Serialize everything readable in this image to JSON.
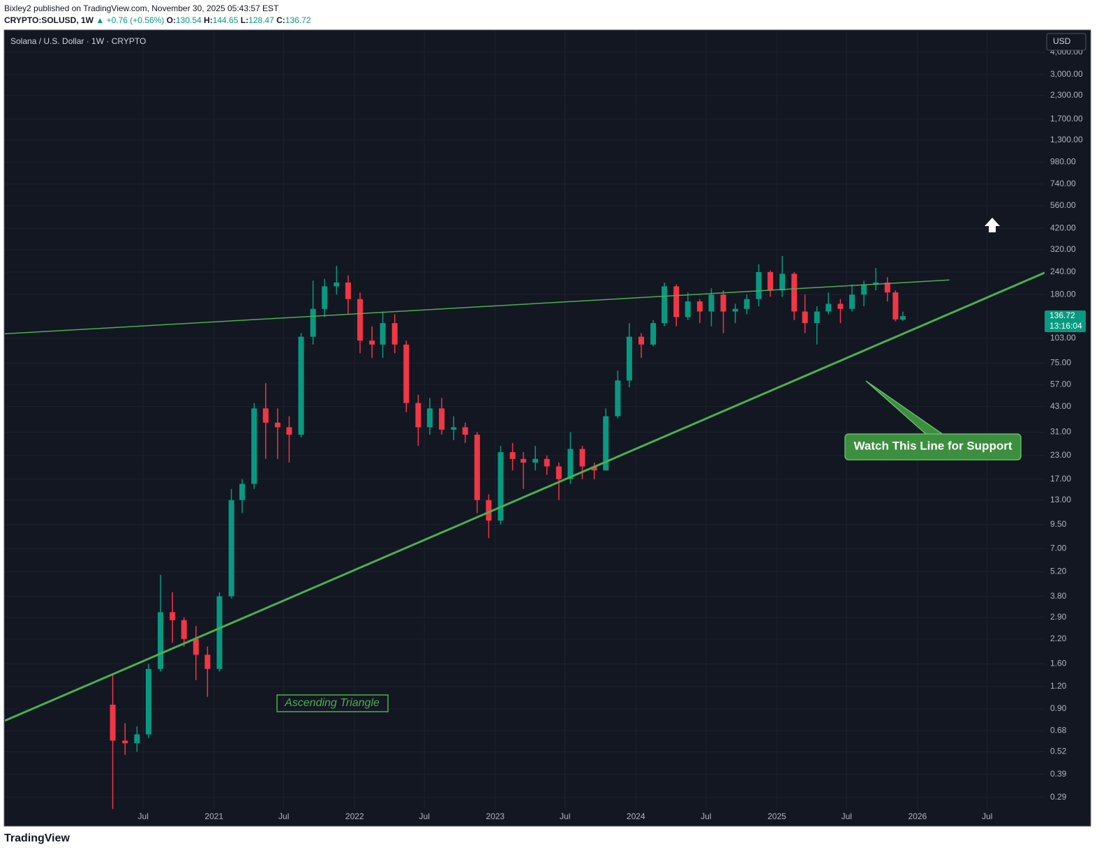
{
  "header": {
    "published": "Bixley2 published on TradingView.com, November 30, 2025 05:43:57 EST",
    "symbol": "CRYPTO:SOLUSD, 1W",
    "change": "▲ +0.76 (+0.56%)",
    "ohlc": [
      {
        "label": "O:",
        "value": 130.54
      },
      {
        "label": "H:",
        "value": 144.65
      },
      {
        "label": "L:",
        "value": 128.47
      },
      {
        "label": "C:",
        "value": 136.72
      }
    ]
  },
  "chart_data": {
    "type": "candlestick",
    "title": "Solana / U.S. Dollar · 1W · CRYPTO",
    "currency": "USD",
    "log_scale": true,
    "grid": true,
    "up_color": "#089981",
    "down_color": "#f23645",
    "x": [
      "2020-04-13",
      "2020-05-15",
      "2020-06-15",
      "2020-07-15",
      "2020-08-15",
      "2020-09-15",
      "2020-10-15",
      "2020-11-15",
      "2020-12-15",
      "2021-01-15",
      "2021-02-15",
      "2021-03-15",
      "2021-04-15",
      "2021-05-15",
      "2021-06-15",
      "2021-07-15",
      "2021-08-15",
      "2021-09-15",
      "2021-10-15",
      "2021-11-15",
      "2021-12-15",
      "2022-01-15",
      "2022-02-15",
      "2022-03-15",
      "2022-04-15",
      "2022-05-15",
      "2022-06-15",
      "2022-07-15",
      "2022-08-15",
      "2022-09-15",
      "2022-10-15",
      "2022-11-15",
      "2022-12-15",
      "2023-01-15",
      "2023-02-15",
      "2023-03-15",
      "2023-04-15",
      "2023-05-15",
      "2023-06-15",
      "2023-07-15",
      "2023-08-15",
      "2023-09-15",
      "2023-10-15",
      "2023-11-15",
      "2023-12-15",
      "2024-01-15",
      "2024-02-15",
      "2024-03-15",
      "2024-04-15",
      "2024-05-15",
      "2024-06-15",
      "2024-07-15",
      "2024-08-15",
      "2024-09-15",
      "2024-10-15",
      "2024-11-15",
      "2024-12-15",
      "2025-01-15",
      "2025-02-15",
      "2025-03-15",
      "2025-04-15",
      "2025-05-15",
      "2025-06-15",
      "2025-07-15",
      "2025-08-15",
      "2025-09-15",
      "2025-10-15",
      "2025-11-05",
      "2025-11-24"
    ],
    "open": [
      0.95,
      0.6,
      0.58,
      0.65,
      1.5,
      3.1,
      2.8,
      2.2,
      1.8,
      1.5,
      3.8,
      13,
      16,
      42,
      35,
      33,
      30,
      105,
      150,
      200,
      210,
      170,
      100,
      95,
      125,
      95,
      45,
      33,
      42,
      32,
      33,
      30,
      13,
      10,
      24,
      22,
      21,
      22,
      20,
      17,
      25,
      20,
      19,
      38,
      60,
      105,
      95,
      125,
      200,
      135,
      165,
      145,
      180,
      145,
      150,
      170,
      240,
      190,
      235,
      145,
      125,
      145,
      160,
      150,
      180,
      205,
      210,
      185,
      130.54
    ],
    "high": [
      1.4,
      0.75,
      0.72,
      1.6,
      5.0,
      4.0,
      2.9,
      2.6,
      2.0,
      4.0,
      15,
      17,
      45,
      58,
      42,
      38,
      110,
      215,
      220,
      260,
      230,
      185,
      120,
      145,
      140,
      100,
      50,
      48,
      48,
      38,
      35,
      31,
      14,
      26,
      27,
      24,
      26,
      23,
      21,
      31,
      26,
      21,
      42,
      68,
      125,
      110,
      130,
      210,
      205,
      185,
      170,
      195,
      190,
      160,
      180,
      265,
      245,
      295,
      240,
      180,
      155,
      185,
      170,
      205,
      215,
      253,
      225,
      190,
      144.65
    ],
    "low": [
      0.25,
      0.5,
      0.52,
      0.62,
      1.45,
      2.1,
      2.0,
      1.3,
      1.05,
      1.45,
      3.7,
      11,
      15,
      22,
      22,
      21,
      29,
      95,
      135,
      180,
      140,
      85,
      80,
      80,
      85,
      40,
      26,
      30,
      30,
      28,
      27,
      11,
      8.0,
      9.5,
      19,
      15,
      19,
      18,
      13,
      16,
      17,
      17,
      19,
      37,
      55,
      80,
      93,
      120,
      120,
      130,
      125,
      120,
      110,
      125,
      140,
      155,
      175,
      175,
      130,
      110,
      95,
      140,
      125,
      145,
      155,
      190,
      165,
      128,
      128.47
    ],
    "close": [
      0.6,
      0.58,
      0.65,
      1.5,
      3.1,
      2.8,
      2.2,
      1.8,
      1.5,
      3.8,
      13,
      16,
      42,
      35,
      33,
      30,
      105,
      150,
      200,
      210,
      170,
      100,
      95,
      125,
      95,
      45,
      33,
      42,
      32,
      33,
      30,
      13,
      10,
      24,
      22,
      21,
      22,
      20,
      17,
      25,
      20,
      19,
      38,
      60,
      105,
      95,
      125,
      200,
      135,
      165,
      145,
      180,
      145,
      150,
      170,
      240,
      190,
      235,
      145,
      125,
      145,
      160,
      150,
      180,
      205,
      210,
      185,
      131,
      136.72
    ],
    "xlim": [
      "2019-07-08",
      "2026-11-27"
    ],
    "xticks": [
      {
        "value": "2020-07-01",
        "label": "Jul"
      },
      {
        "value": "2021-01-01",
        "label": "2021"
      },
      {
        "value": "2021-07-01",
        "label": "Jul"
      },
      {
        "value": "2022-01-01",
        "label": "2022"
      },
      {
        "value": "2022-07-01",
        "label": "Jul"
      },
      {
        "value": "2023-01-01",
        "label": "2023"
      },
      {
        "value": "2023-07-01",
        "label": "Jul"
      },
      {
        "value": "2024-01-01",
        "label": "2024"
      },
      {
        "value": "2024-07-01",
        "label": "Jul"
      },
      {
        "value": "2025-01-01",
        "label": "2025"
      },
      {
        "value": "2025-07-01",
        "label": "Jul"
      },
      {
        "value": "2026-01-01",
        "label": "2026"
      },
      {
        "value": "2026-07-01",
        "label": "Jul"
      }
    ],
    "ylim": [
      0.249,
      5260
    ],
    "yticks": [
      {
        "value": 4000,
        "label": "4,000.00"
      },
      {
        "value": 3000,
        "label": "3,000.00"
      },
      {
        "value": 2300,
        "label": "2,300.00"
      },
      {
        "value": 1700,
        "label": "1,700.00"
      },
      {
        "value": 1300,
        "label": "1,300.00"
      },
      {
        "value": 980,
        "label": "980.00"
      },
      {
        "value": 740,
        "label": "740.00"
      },
      {
        "value": 560,
        "label": "560.00"
      },
      {
        "value": 420,
        "label": "420.00"
      },
      {
        "value": 320,
        "label": "320.00"
      },
      {
        "value": 240,
        "label": "240.00"
      },
      {
        "value": 180,
        "label": "180.00"
      },
      {
        "value": 103,
        "label": "103.00"
      },
      {
        "value": 75,
        "label": "75.00"
      },
      {
        "value": 57,
        "label": "57.00"
      },
      {
        "value": 43,
        "label": "43.00"
      },
      {
        "value": 31,
        "label": "31.00"
      },
      {
        "value": 23,
        "label": "23.00"
      },
      {
        "value": 17,
        "label": "17.00"
      },
      {
        "value": 13,
        "label": "13.00"
      },
      {
        "value": 9.5,
        "label": "9.50"
      },
      {
        "value": 7,
        "label": "7.00"
      },
      {
        "value": 5.2,
        "label": "5.20"
      },
      {
        "value": 3.8,
        "label": "3.80"
      },
      {
        "value": 2.9,
        "label": "2.90"
      },
      {
        "value": 2.2,
        "label": "2.20"
      },
      {
        "value": 1.6,
        "label": "1.60"
      },
      {
        "value": 1.2,
        "label": "1.20"
      },
      {
        "value": 0.9,
        "label": "0.90"
      },
      0.68,
      0.52,
      0.39,
      0.29
    ],
    "trend_lines": [
      {
        "x": [
          "2019-07-08",
          "2026-11-27"
        ],
        "y": [
          0.774,
          238
        ],
        "color": "#4caf50"
      },
      {
        "x": [
          "2019-07-08",
          "2026-03-25"
        ],
        "y": [
          109,
          217
        ],
        "color": "#4caf50"
      }
    ],
    "annotations": [
      "Ascending Triangle",
      "Watch This Line for Support"
    ],
    "last_price": 136.72,
    "countdown": "13:16:04"
  },
  "footer": {
    "brand": "TradingView"
  }
}
